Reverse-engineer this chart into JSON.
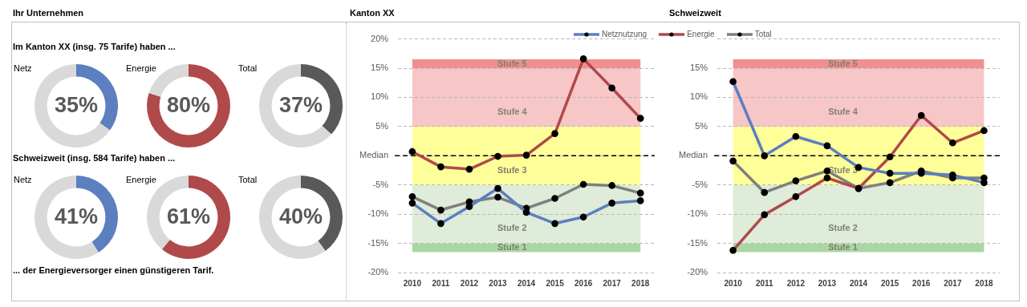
{
  "chart_data": [
    {
      "type": "other",
      "title": "Ihr Unternehmen",
      "annotations": [
        "Im Kanton XX (insg. 75 Tarife) haben ...",
        "Schweizweit (insg. 584 Tarife) haben ...",
        "... der Energieversorger einen günstigeren Tarif."
      ]
    },
    {
      "type": "donut",
      "title": "Netz",
      "categories": [
        null,
        null
      ],
      "values": [
        35,
        65
      ],
      "colors": [
        "#5b7fbf",
        "#d9d9d9"
      ],
      "value_labels": [
        "35%",
        null
      ]
    },
    {
      "type": "donut",
      "title": "Energie",
      "categories": [
        null,
        null
      ],
      "values": [
        80,
        20
      ],
      "colors": [
        "#b0494a",
        "#d9d9d9"
      ],
      "value_labels": [
        "80%",
        null
      ]
    },
    {
      "type": "donut",
      "title": "Total",
      "categories": [
        null,
        null
      ],
      "values": [
        37,
        63
      ],
      "colors": [
        "#595959",
        "#d9d9d9"
      ],
      "value_labels": [
        "37%",
        null
      ]
    },
    {
      "type": "donut",
      "title": "Netz",
      "categories": [
        null,
        null
      ],
      "values": [
        41,
        59
      ],
      "colors": [
        "#5b7fbf",
        "#d9d9d9"
      ],
      "value_labels": [
        "41%",
        null
      ]
    },
    {
      "type": "donut",
      "title": "Energie",
      "categories": [
        null,
        null
      ],
      "values": [
        61,
        39
      ],
      "colors": [
        "#b0494a",
        "#d9d9d9"
      ],
      "value_labels": [
        "61%",
        null
      ]
    },
    {
      "type": "donut",
      "title": "Total",
      "categories": [
        null,
        null
      ],
      "values": [
        40,
        60
      ],
      "colors": [
        "#595959",
        "#d9d9d9"
      ],
      "value_labels": [
        "40%",
        null
      ]
    },
    {
      "type": "line",
      "title": "Kanton XX",
      "categories": [
        "2010",
        "2011",
        "2012",
        "2013",
        "2014",
        "2015",
        "2016",
        "2017",
        "2018"
      ],
      "series": [
        {
          "name": "Netznutzung",
          "color": "#5b7fbf",
          "values": [
            -8.1,
            -11.6,
            -8.7,
            -5.6,
            -9.7,
            -11.6,
            -10.5,
            -8.1,
            -7.7
          ]
        },
        {
          "name": "Energie",
          "color": "#b0494a",
          "values": [
            0.7,
            -1.9,
            -2.3,
            -0.1,
            0.1,
            3.8,
            16.6,
            11.6,
            6.4
          ]
        },
        {
          "name": "Total",
          "color": "#7f7f7f",
          "values": [
            -7.0,
            -9.3,
            -7.9,
            -7.1,
            -9.0,
            -7.3,
            -4.9,
            -5.1,
            -6.4
          ]
        }
      ],
      "ylim": [
        -20,
        20
      ],
      "yticks": [
        {
          "value": -20,
          "label": "-20%"
        },
        {
          "value": -15,
          "label": "-15%"
        },
        {
          "value": -10,
          "label": "-10%"
        },
        {
          "value": -5,
          "label": "-5%"
        },
        {
          "value": 0,
          "label": "Median"
        },
        {
          "value": 5,
          "label": "5%"
        },
        {
          "value": 10,
          "label": "10%"
        },
        {
          "value": 15,
          "label": "15%"
        },
        {
          "value": 20,
          "label": "20%"
        }
      ],
      "bands": [
        {
          "axis": "y",
          "from": -16.5,
          "to": -15,
          "label": "Stufe 1",
          "color": "#a9d7a4"
        },
        {
          "axis": "y",
          "from": -15,
          "to": -5,
          "label": "Stufe 2",
          "color": "#deecd9"
        },
        {
          "axis": "y",
          "from": -5,
          "to": 5,
          "label": "Stufe 3",
          "color": "#ffff99"
        },
        {
          "axis": "y",
          "from": 5,
          "to": 15,
          "label": "Stufe 4",
          "color": "#f7c6c6"
        },
        {
          "axis": "y",
          "from": 15,
          "to": 16.5,
          "label": "Stufe 5",
          "color": "#ef8f8f"
        }
      ],
      "ref_lines": [
        {
          "axis": "y",
          "value": 0,
          "color": "#000000",
          "line_style": "dashed"
        }
      ],
      "grid": "y",
      "legend": "top",
      "marker": "circle",
      "line_style": "solid"
    },
    {
      "type": "line",
      "title": "Schweizweit",
      "categories": [
        "2010",
        "2011",
        "2012",
        "2013",
        "2014",
        "2015",
        "2016",
        "2017",
        "2018"
      ],
      "series": [
        {
          "color": "#5b7fbf",
          "values": [
            12.7,
            0,
            3.3,
            1.7,
            -2.0,
            -3.0,
            -3.0,
            -3.3,
            -4.6
          ]
        },
        {
          "color": "#b0494a",
          "values": [
            -16.2,
            -10.1,
            -7.0,
            -3.8,
            -5.6,
            -0.2,
            6.9,
            2.2,
            4.3
          ]
        },
        {
          "color": "#7f7f7f",
          "values": [
            -0.9,
            -6.3,
            -4.3,
            -2.6,
            -5.6,
            -4.6,
            -2.6,
            -3.8,
            -3.8
          ]
        }
      ],
      "ylim": [
        -20,
        20
      ],
      "yticks": [
        {
          "value": -20,
          "label": "-20%"
        },
        {
          "value": -15,
          "label": "-15%"
        },
        {
          "value": -10,
          "label": "-10%"
        },
        {
          "value": -5,
          "label": "-5%"
        },
        {
          "value": 0,
          "label": "Median"
        },
        {
          "value": 5,
          "label": "5%"
        },
        {
          "value": 10,
          "label": "10%"
        },
        {
          "value": 15,
          "label": "15%"
        },
        {
          "value": 20,
          "label": null
        }
      ],
      "bands": [
        {
          "axis": "y",
          "from": -16.5,
          "to": -15,
          "label": "Stufe 1",
          "color": "#a9d7a4"
        },
        {
          "axis": "y",
          "from": -15,
          "to": -5,
          "label": "Stufe 2",
          "color": "#deecd9"
        },
        {
          "axis": "y",
          "from": -5,
          "to": 5,
          "label": "Stufe 3",
          "color": "#ffff99"
        },
        {
          "axis": "y",
          "from": 5,
          "to": 15,
          "label": "Stufe 4",
          "color": "#f7c6c6"
        },
        {
          "axis": "y",
          "from": 15,
          "to": 16.5,
          "label": "Stufe 5",
          "color": "#ef8f8f"
        }
      ],
      "ref_lines": [
        {
          "axis": "y",
          "value": 0,
          "color": "#000000",
          "line_style": "dashed"
        }
      ],
      "grid": "y",
      "marker": "circle",
      "line_style": "solid"
    }
  ]
}
